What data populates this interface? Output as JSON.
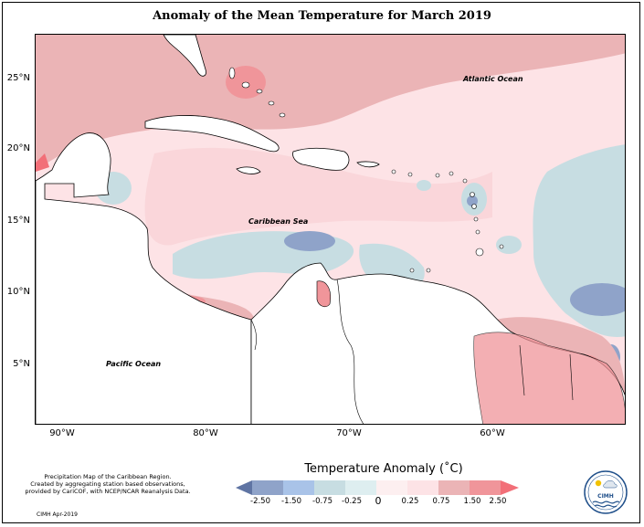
{
  "title": "Anomaly of the Mean Temperature for March 2019",
  "map": {
    "lat_labels": [
      "25°N",
      "20°N",
      "15°N",
      "10°N",
      "5°N"
    ],
    "lon_labels": [
      "90°W",
      "80°W",
      "70°W",
      "60°W"
    ],
    "regions": {
      "atlantic": "Atlantic Ocean",
      "caribbean": "Caribbean Sea",
      "pacific": "Pacific Ocean"
    },
    "colors": {
      "anom_neg_2_50": "#5f74a3",
      "anom_neg_1_50": "#8fa3c9",
      "anom_neg_0_75": "#a9c3e8",
      "anom_neg_0_25": "#c7dde2",
      "anom_pos_0_25": "#fde3e6",
      "anom_pos_0_75": "#ebb4b6",
      "anom_pos_1_50": "#f0959a",
      "anom_pos_2_50": "#f26f78",
      "land": "#ffffff",
      "coast": "#000000"
    }
  },
  "legend": {
    "title": "Temperature Anomaly (˚C)",
    "ticks": [
      "-2.50",
      "-1.50",
      "-0.75",
      "-0.25",
      "0",
      "0.25",
      "0.75",
      "1.50",
      "2.50"
    ]
  },
  "credits": {
    "line1": "Precipitation Map of the Caribbean Region.",
    "line2": "Created by aggregating station based observations,",
    "line3": "provided by CariCOF, with NCEP/NCAR Reanalysis Data.",
    "stamp": "CIMH Apr-2019"
  },
  "logo": {
    "text": "CIMH"
  }
}
